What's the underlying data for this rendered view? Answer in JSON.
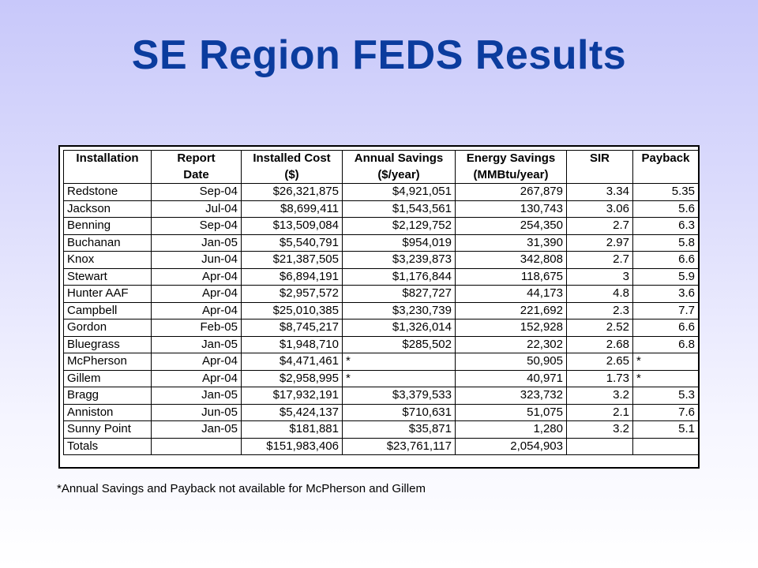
{
  "title": "SE Region FEDS Results",
  "headers": {
    "top": [
      "Installation",
      "Report",
      "Installed Cost",
      "Annual Savings",
      "Energy Savings",
      "SIR",
      "Payback"
    ],
    "sub": [
      "",
      "Date",
      "($)",
      "($/year)",
      "(MMBtu/year)",
      "",
      ""
    ]
  },
  "rows": [
    {
      "installation": "Redstone",
      "date": "Sep-04",
      "cost": "$26,321,875",
      "annual": "$4,921,051",
      "energy": "267,879",
      "sir": "3.34",
      "payback": "5.35"
    },
    {
      "installation": "Jackson",
      "date": "Jul-04",
      "cost": "$8,699,411",
      "annual": "$1,543,561",
      "energy": "130,743",
      "sir": "3.06",
      "payback": "5.6"
    },
    {
      "installation": "Benning",
      "date": "Sep-04",
      "cost": "$13,509,084",
      "annual": "$2,129,752",
      "energy": "254,350",
      "sir": "2.7",
      "payback": "6.3"
    },
    {
      "installation": "Buchanan",
      "date": "Jan-05",
      "cost": "$5,540,791",
      "annual": "$954,019",
      "energy": "31,390",
      "sir": "2.97",
      "payback": "5.8"
    },
    {
      "installation": "Knox",
      "date": "Jun-04",
      "cost": "$21,387,505",
      "annual": "$3,239,873",
      "energy": "342,808",
      "sir": "2.7",
      "payback": "6.6"
    },
    {
      "installation": "Stewart",
      "date": "Apr-04",
      "cost": "$6,894,191",
      "annual": "$1,176,844",
      "energy": "118,675",
      "sir": "3",
      "payback": "5.9"
    },
    {
      "installation": "Hunter AAF",
      "date": "Apr-04",
      "cost": "$2,957,572",
      "annual": "$827,727",
      "energy": "44,173",
      "sir": "4.8",
      "payback": "3.6"
    },
    {
      "installation": "Campbell",
      "date": "Apr-04",
      "cost": "$25,010,385",
      "annual": "$3,230,739",
      "energy": "221,692",
      "sir": "2.3",
      "payback": "7.7"
    },
    {
      "installation": "Gordon",
      "date": "Feb-05",
      "cost": "$8,745,217",
      "annual": "$1,326,014",
      "energy": "152,928",
      "sir": "2.52",
      "payback": "6.6"
    },
    {
      "installation": "Bluegrass",
      "date": "Jan-05",
      "cost": "$1,948,710",
      "annual": "$285,502",
      "energy": "22,302",
      "sir": "2.68",
      "payback": "6.8"
    },
    {
      "installation": "McPherson",
      "date": "Apr-04",
      "cost": "$4,471,461",
      "annual": "*",
      "energy": "50,905",
      "sir": "2.65",
      "payback": "*"
    },
    {
      "installation": "Gillem",
      "date": "Apr-04",
      "cost": "$2,958,995",
      "annual": "*",
      "energy": "40,971",
      "sir": "1.73",
      "payback": "*"
    },
    {
      "installation": "Bragg",
      "date": "Jan-05",
      "cost": "$17,932,191",
      "annual": "$3,379,533",
      "energy": "323,732",
      "sir": "3.2",
      "payback": "5.3"
    },
    {
      "installation": "Anniston",
      "date": "Jun-05",
      "cost": "$5,424,137",
      "annual": "$710,631",
      "energy": "51,075",
      "sir": "2.1",
      "payback": "7.6"
    },
    {
      "installation": "Sunny Point",
      "date": "Jan-05",
      "cost": "$181,881",
      "annual": "$35,871",
      "energy": "1,280",
      "sir": "3.2",
      "payback": "5.1"
    }
  ],
  "totals": {
    "installation": "Totals",
    "date": "",
    "cost": "$151,983,406",
    "annual": "$23,761,117",
    "energy": "2,054,903",
    "sir": "",
    "payback": ""
  },
  "footnote": "*Annual Savings and Payback not available for McPherson and Gillem"
}
